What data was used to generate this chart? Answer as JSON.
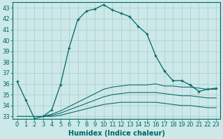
{
  "xlabel": "Humidex (Indice chaleur)",
  "ylabel": "",
  "background_color": "#cce8e8",
  "grid_color": "#aacccc",
  "line_color": "#006666",
  "ylim": [
    32.8,
    43.5
  ],
  "xlim": [
    -0.5,
    23.5
  ],
  "yticks": [
    33,
    34,
    35,
    36,
    37,
    38,
    39,
    40,
    41,
    42,
    43
  ],
  "xticks": [
    0,
    1,
    2,
    3,
    4,
    5,
    6,
    7,
    8,
    9,
    10,
    11,
    12,
    13,
    14,
    15,
    16,
    17,
    18,
    19,
    20,
    21,
    22,
    23
  ],
  "line1": [
    36.2,
    34.5,
    32.8,
    33.0,
    33.6,
    35.9,
    39.3,
    41.9,
    42.7,
    42.9,
    43.3,
    42.8,
    42.5,
    42.2,
    41.3,
    40.6,
    38.6,
    37.2,
    36.3,
    36.3,
    35.9,
    35.3,
    35.5,
    35.6
  ],
  "line2": [
    33.0,
    33.0,
    33.0,
    33.0,
    33.2,
    33.5,
    33.9,
    34.3,
    34.7,
    35.1,
    35.5,
    35.7,
    35.8,
    35.9,
    35.9,
    35.9,
    36.0,
    35.8,
    35.8,
    35.7,
    35.7,
    35.6,
    35.5,
    35.5
  ],
  "line3": [
    33.0,
    33.0,
    33.0,
    33.0,
    33.1,
    33.3,
    33.6,
    33.9,
    34.2,
    34.5,
    34.8,
    35.0,
    35.1,
    35.2,
    35.2,
    35.2,
    35.2,
    35.1,
    35.0,
    34.9,
    34.9,
    34.8,
    34.7,
    34.7
  ],
  "line4": [
    33.0,
    33.0,
    33.0,
    33.0,
    33.0,
    33.1,
    33.3,
    33.5,
    33.7,
    33.9,
    34.1,
    34.2,
    34.3,
    34.3,
    34.3,
    34.3,
    34.3,
    34.2,
    34.1,
    34.0,
    34.0,
    33.9,
    33.8,
    33.8
  ],
  "tick_fontsize": 6,
  "xlabel_fontsize": 7
}
